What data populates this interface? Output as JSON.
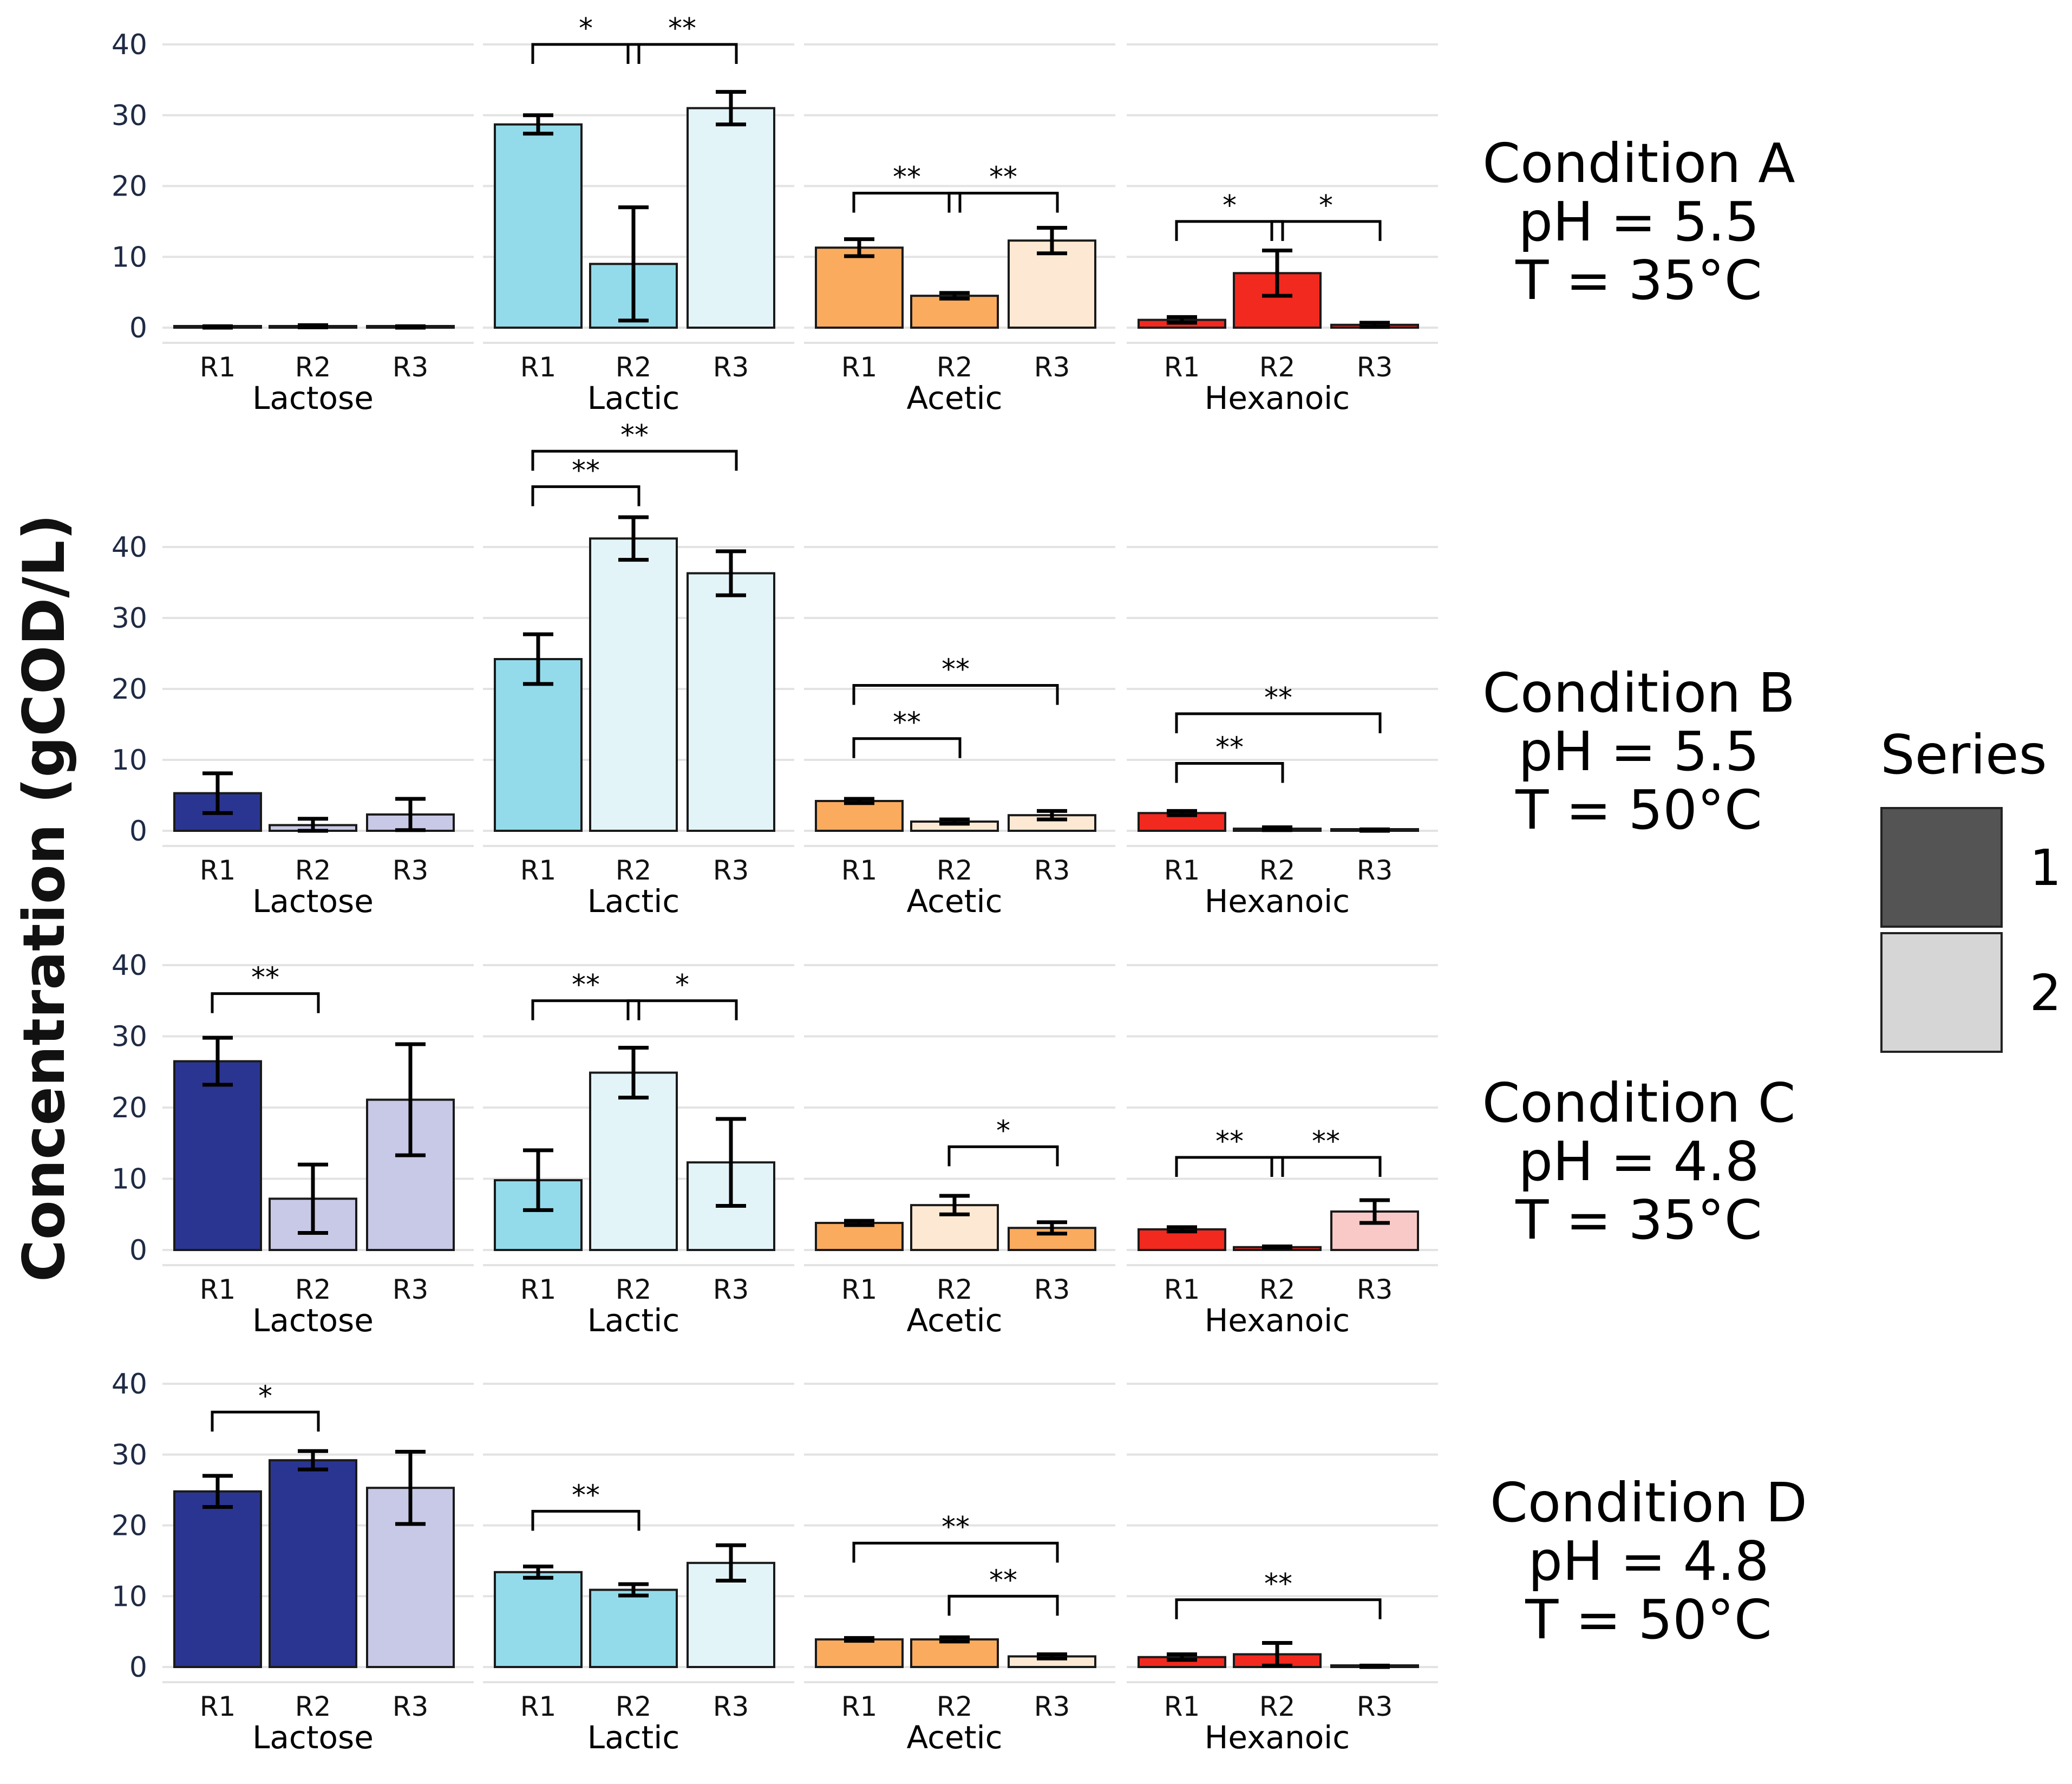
{
  "chart_data": {
    "type": "bar",
    "ylabel": "Concentration (gCOD/L)",
    "ylim": [
      0,
      40
    ],
    "yticks": [
      "0",
      "10",
      "20",
      "30",
      "40"
    ],
    "categories": [
      "R1",
      "R2",
      "R3"
    ],
    "compounds": [
      "Lactose",
      "Lactic",
      "Acetic",
      "Hexanoic"
    ],
    "colors": {
      "Lactose": {
        "1": "#2a3591",
        "2": "#c8c9e6"
      },
      "Lactic": {
        "1": "#93dbea",
        "2": "#e3f4f9"
      },
      "Acetic": {
        "1": "#fbab5e",
        "2": "#fde9d3"
      },
      "Hexanoic": {
        "1": "#f2291f",
        "2": "#f9c9c7"
      }
    },
    "legend": {
      "title": "Series",
      "items": [
        {
          "label": "1",
          "color": "#545454"
        },
        {
          "label": "2",
          "color": "#d6d6d6"
        }
      ],
      "position": "right"
    },
    "conditions": [
      {
        "label_lines": [
          "Condition A",
          "pH = 5.5",
          "T = 35°C"
        ],
        "panels": [
          {
            "compound": "Lactose",
            "values": [
              0.1,
              0.2,
              0.1
            ],
            "errors": [
              0.1,
              0.15,
              0.1
            ],
            "series": [
              1,
              1,
              1
            ],
            "sig": []
          },
          {
            "compound": "Lactic",
            "values": [
              28.7,
              9.0,
              31.0
            ],
            "errors": [
              1.3,
              8.0,
              2.3
            ],
            "series": [
              1,
              1,
              2
            ],
            "sig": [
              {
                "from": 0,
                "to": 1,
                "level": 40,
                "label": "*"
              },
              {
                "from": 1,
                "to": 2,
                "level": 40,
                "label": "**"
              }
            ]
          },
          {
            "compound": "Acetic",
            "values": [
              11.3,
              4.5,
              12.3
            ],
            "errors": [
              1.2,
              0.4,
              1.8
            ],
            "series": [
              1,
              1,
              2
            ],
            "sig": [
              {
                "from": 0,
                "to": 1,
                "level": 19,
                "label": "**"
              },
              {
                "from": 1,
                "to": 2,
                "level": 19,
                "label": "**"
              }
            ]
          },
          {
            "compound": "Hexanoic",
            "values": [
              1.1,
              7.7,
              0.4
            ],
            "errors": [
              0.4,
              3.2,
              0.3
            ],
            "series": [
              1,
              1,
              1
            ],
            "sig": [
              {
                "from": 0,
                "to": 1,
                "level": 15,
                "label": "*"
              },
              {
                "from": 1,
                "to": 2,
                "level": 15,
                "label": "*"
              }
            ]
          }
        ]
      },
      {
        "label_lines": [
          "Condition B",
          "pH = 5.5",
          "T = 50°C"
        ],
        "panels": [
          {
            "compound": "Lactose",
            "values": [
              5.3,
              0.8,
              2.3
            ],
            "errors": [
              2.8,
              0.9,
              2.2
            ],
            "series": [
              1,
              2,
              2
            ],
            "sig": []
          },
          {
            "compound": "Lactic",
            "values": [
              24.2,
              41.2,
              36.3
            ],
            "errors": [
              3.5,
              3.0,
              3.1
            ],
            "series": [
              1,
              2,
              2
            ],
            "sig": [
              {
                "from": 0,
                "to": 1,
                "level": 48.5,
                "label": "**"
              },
              {
                "from": 0,
                "to": 2,
                "level": 53.5,
                "label": "**"
              }
            ]
          },
          {
            "compound": "Acetic",
            "values": [
              4.2,
              1.3,
              2.2
            ],
            "errors": [
              0.3,
              0.3,
              0.6
            ],
            "series": [
              1,
              2,
              2
            ],
            "sig": [
              {
                "from": 0,
                "to": 1,
                "level": 13,
                "label": "**"
              },
              {
                "from": 0,
                "to": 2,
                "level": 20.5,
                "label": "**"
              }
            ]
          },
          {
            "compound": "Hexanoic",
            "values": [
              2.5,
              0.3,
              0.1
            ],
            "errors": [
              0.3,
              0.2,
              0.1
            ],
            "series": [
              1,
              1,
              1
            ],
            "sig": [
              {
                "from": 0,
                "to": 1,
                "level": 9.5,
                "label": "**"
              },
              {
                "from": 0,
                "to": 2,
                "level": 16.5,
                "label": "**"
              }
            ]
          }
        ]
      },
      {
        "label_lines": [
          "Condition C",
          "pH = 4.8",
          "T = 35°C"
        ],
        "panels": [
          {
            "compound": "Lactose",
            "values": [
              26.5,
              7.2,
              21.1
            ],
            "errors": [
              3.3,
              4.8,
              7.8
            ],
            "series": [
              1,
              2,
              2
            ],
            "sig": [
              {
                "from": 0,
                "to": 1,
                "level": 36,
                "label": "**"
              }
            ]
          },
          {
            "compound": "Lactic",
            "values": [
              9.8,
              24.9,
              12.3
            ],
            "errors": [
              4.2,
              3.5,
              6.1
            ],
            "series": [
              1,
              2,
              2
            ],
            "sig": [
              {
                "from": 0,
                "to": 1,
                "level": 35,
                "label": "**"
              },
              {
                "from": 1,
                "to": 2,
                "level": 35,
                "label": "*"
              }
            ]
          },
          {
            "compound": "Acetic",
            "values": [
              3.8,
              6.3,
              3.1
            ],
            "errors": [
              0.3,
              1.3,
              0.8
            ],
            "series": [
              1,
              2,
              1
            ],
            "sig": [
              {
                "from": 1,
                "to": 2,
                "level": 14.5,
                "label": "*"
              }
            ]
          },
          {
            "compound": "Hexanoic",
            "values": [
              2.9,
              0.4,
              5.4
            ],
            "errors": [
              0.3,
              0.1,
              1.6
            ],
            "series": [
              1,
              1,
              2
            ],
            "sig": [
              {
                "from": 0,
                "to": 1,
                "level": 13,
                "label": "**"
              },
              {
                "from": 1,
                "to": 2,
                "level": 13,
                "label": "**"
              }
            ]
          }
        ]
      },
      {
        "label_lines": [
          "Condition D",
          "pH = 4.8",
          "T = 50°C"
        ],
        "panels": [
          {
            "compound": "Lactose",
            "values": [
              24.8,
              29.2,
              25.3
            ],
            "errors": [
              2.2,
              1.3,
              5.1
            ],
            "series": [
              1,
              1,
              2
            ],
            "sig": [
              {
                "from": 0,
                "to": 1,
                "level": 36,
                "label": "*"
              }
            ]
          },
          {
            "compound": "Lactic",
            "values": [
              13.4,
              10.9,
              14.7
            ],
            "errors": [
              0.8,
              0.8,
              2.5
            ],
            "series": [
              1,
              1,
              2
            ],
            "sig": [
              {
                "from": 0,
                "to": 1,
                "level": 22,
                "label": "**"
              }
            ]
          },
          {
            "compound": "Acetic",
            "values": [
              3.9,
              3.9,
              1.5
            ],
            "errors": [
              0.2,
              0.3,
              0.3
            ],
            "series": [
              1,
              1,
              2
            ],
            "sig": [
              {
                "from": 0,
                "to": 2,
                "level": 17.5,
                "label": "**"
              },
              {
                "from": 1,
                "to": 2,
                "level": 10,
                "label": "**"
              }
            ]
          },
          {
            "compound": "Hexanoic",
            "values": [
              1.4,
              1.8,
              0.1
            ],
            "errors": [
              0.4,
              1.6,
              0.1
            ],
            "series": [
              1,
              1,
              1
            ],
            "sig": [
              {
                "from": 0,
                "to": 2,
                "level": 9.5,
                "label": "**"
              }
            ]
          }
        ]
      }
    ]
  }
}
